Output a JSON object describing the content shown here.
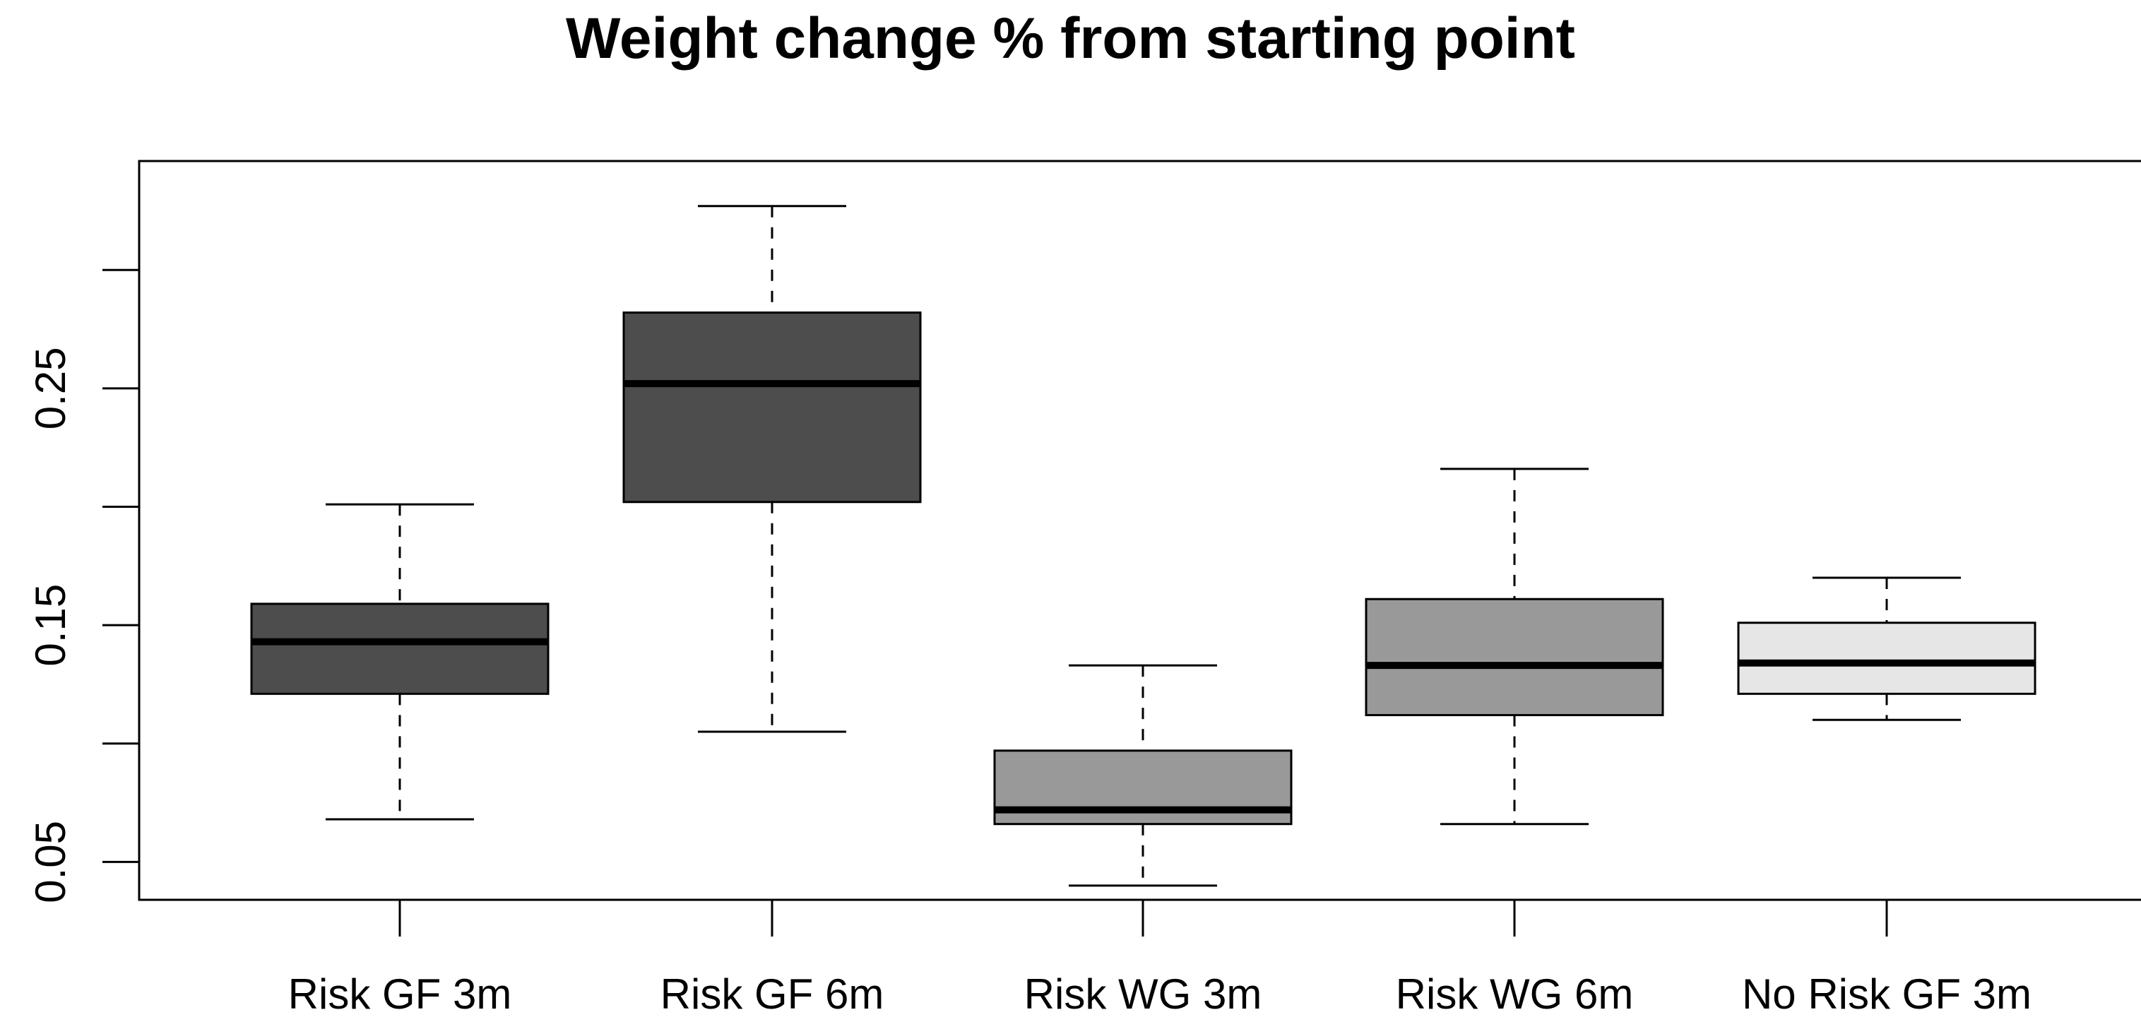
{
  "chart_data": {
    "type": "boxplot",
    "title": "Weight change % from starting point",
    "xlabel": "",
    "ylabel": "",
    "ylim": [
      0.034,
      0.346
    ],
    "yticks": [
      0.05,
      0.1,
      0.15,
      0.2,
      0.25,
      0.3
    ],
    "ytick_labels": [
      "0.05",
      "",
      "0.15",
      "",
      "0.25",
      ""
    ],
    "grid": false,
    "categories": [
      "Risk GF 3m",
      "Risk GF 6m",
      "Risk WG 3m",
      "Risk WG 6m",
      "No Risk GF 3m"
    ],
    "boxes": [
      {
        "label": "Risk GF 3m",
        "whisker_low": 0.068,
        "q1": 0.121,
        "median": 0.143,
        "q3": 0.159,
        "whisker_high": 0.201,
        "color": "#4d4d4d"
      },
      {
        "label": "Risk GF 6m",
        "whisker_low": 0.105,
        "q1": 0.202,
        "median": 0.252,
        "q3": 0.282,
        "whisker_high": 0.327,
        "color": "#4d4d4d"
      },
      {
        "label": "Risk WG 3m",
        "whisker_low": 0.04,
        "q1": 0.066,
        "median": 0.072,
        "q3": 0.097,
        "whisker_high": 0.133,
        "color": "#999999"
      },
      {
        "label": "Risk WG 6m",
        "whisker_low": 0.066,
        "q1": 0.112,
        "median": 0.133,
        "q3": 0.161,
        "whisker_high": 0.216,
        "color": "#999999"
      },
      {
        "label": "No Risk GF 3m",
        "whisker_low": 0.11,
        "q1": 0.121,
        "median": 0.134,
        "q3": 0.151,
        "whisker_high": 0.17,
        "color": "#e6e6e6"
      }
    ]
  }
}
